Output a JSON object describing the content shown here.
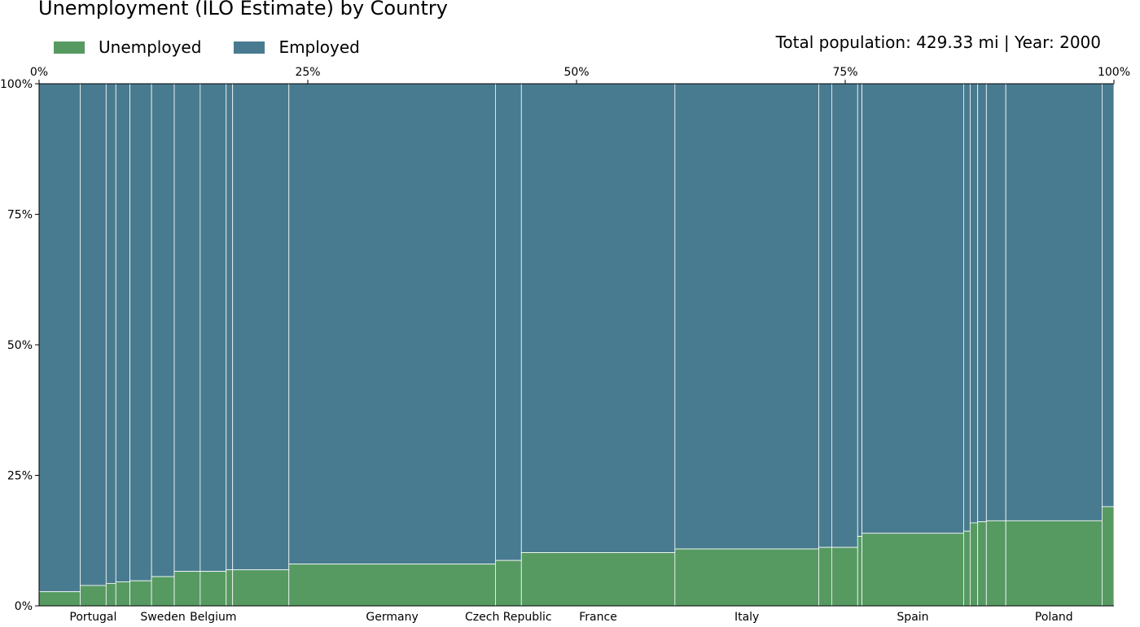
{
  "chart_data": {
    "type": "marimekko",
    "title": "Unemployment (ILO Estimate) by Country",
    "subtitle": "Total population: 429.33 mi | Year: 2000",
    "legend": [
      {
        "name": "Unemployed",
        "color": "#569a62"
      },
      {
        "name": "Employed",
        "color": "#487b90"
      }
    ],
    "x_ticks": [
      "0%",
      "25%",
      "50%",
      "75%",
      "100%"
    ],
    "y_ticks": [
      "0%",
      "25%",
      "50%",
      "75%",
      "100%"
    ],
    "xlim": [
      0,
      100
    ],
    "ylim": [
      0,
      100
    ],
    "segments": [
      {
        "label": "",
        "width": 3.8,
        "unemployed": 2.7
      },
      {
        "label": "Portugal",
        "width": 2.4,
        "unemployed": 3.9
      },
      {
        "label": "",
        "width": 0.9,
        "unemployed": 4.3
      },
      {
        "label": "",
        "width": 1.3,
        "unemployed": 4.6
      },
      {
        "label": "",
        "width": 2.0,
        "unemployed": 4.8
      },
      {
        "label": "Sweden",
        "width": 2.1,
        "unemployed": 5.6
      },
      {
        "label": "",
        "width": 2.4,
        "unemployed": 6.6
      },
      {
        "label": "Belgium",
        "width": 2.4,
        "unemployed": 6.6
      },
      {
        "label": "",
        "width": 0.6,
        "unemployed": 6.9
      },
      {
        "label": "",
        "width": 5.2,
        "unemployed": 6.9
      },
      {
        "label": "Germany",
        "width": 19.1,
        "unemployed": 8.0
      },
      {
        "label": "Czech Republic",
        "width": 2.4,
        "unemployed": 8.7
      },
      {
        "label": "France",
        "width": 14.2,
        "unemployed": 10.2
      },
      {
        "label": "Italy",
        "width": 13.3,
        "unemployed": 10.9
      },
      {
        "label": "",
        "width": 1.2,
        "unemployed": 11.2
      },
      {
        "label": "",
        "width": 2.4,
        "unemployed": 11.2
      },
      {
        "label": "",
        "width": 0.4,
        "unemployed": 13.3
      },
      {
        "label": "Spain",
        "width": 9.4,
        "unemployed": 13.9
      },
      {
        "label": "",
        "width": 0.6,
        "unemployed": 14.3
      },
      {
        "label": "",
        "width": 0.7,
        "unemployed": 15.9
      },
      {
        "label": "",
        "width": 0.8,
        "unemployed": 16.1
      },
      {
        "label": "",
        "width": 1.8,
        "unemployed": 16.3
      },
      {
        "label": "Poland",
        "width": 8.9,
        "unemployed": 16.3
      },
      {
        "label": "",
        "width": 1.1,
        "unemployed": 19.0
      }
    ]
  }
}
